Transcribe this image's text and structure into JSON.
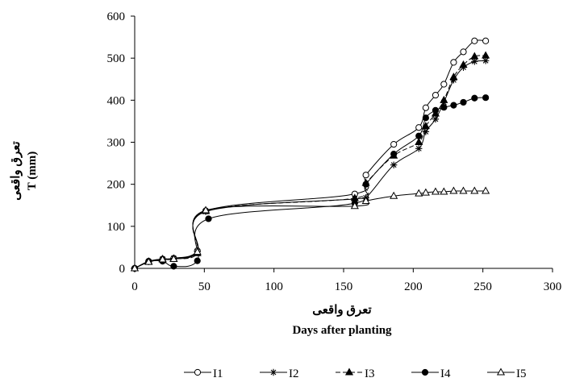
{
  "chart_data": {
    "type": "line",
    "xlabel": "Days after planting",
    "xlabel_alt": "تعرق واقعی",
    "ylabel": "T (mm)",
    "ylabel_alt": "تعرق واقعی",
    "xlim": [
      0,
      300
    ],
    "ylim": [
      0,
      600
    ],
    "xticks": [
      0,
      50,
      100,
      150,
      200,
      250,
      300
    ],
    "yticks": [
      0,
      100,
      200,
      300,
      400,
      500,
      600
    ],
    "grid": false,
    "legend": "bottom",
    "series": [
      {
        "name": "I1",
        "marker": "open-circle",
        "line": "solid",
        "x": [
          0,
          10,
          20,
          28,
          45,
          51,
          158,
          166,
          186,
          204,
          209,
          216,
          222,
          229,
          236,
          244,
          252
        ],
        "y": [
          0,
          17,
          22,
          24,
          42,
          137,
          177,
          222,
          295,
          335,
          382,
          412,
          438,
          490,
          515,
          541,
          541
        ]
      },
      {
        "name": "I2",
        "marker": "star",
        "line": "solid",
        "x": [
          0,
          10,
          20,
          28,
          45,
          51,
          158,
          166,
          186,
          204,
          209,
          216,
          222,
          229,
          236,
          244,
          252
        ],
        "y": [
          0,
          16,
          22,
          24,
          40,
          135,
          165,
          168,
          246,
          285,
          325,
          355,
          395,
          448,
          478,
          492,
          494
        ]
      },
      {
        "name": "I3",
        "marker": "filled-triangle",
        "line": "dashed",
        "x": [
          0,
          10,
          20,
          28,
          45,
          51,
          158,
          166,
          186,
          204,
          209,
          216,
          222,
          229,
          236,
          244,
          252
        ],
        "y": [
          0,
          16,
          22,
          23,
          36,
          136,
          167,
          203,
          268,
          300,
          338,
          368,
          400,
          455,
          484,
          504,
          506
        ]
      },
      {
        "name": "I4",
        "marker": "filled-circle",
        "line": "solid",
        "x": [
          0,
          10,
          20,
          28,
          45,
          53,
          158,
          166,
          186,
          204,
          209,
          216,
          222,
          229,
          236,
          244,
          252
        ],
        "y": [
          0,
          16,
          17,
          5,
          18,
          118,
          155,
          200,
          272,
          315,
          358,
          376,
          383,
          388,
          395,
          405,
          406
        ]
      },
      {
        "name": "I5",
        "marker": "open-triangle",
        "line": "solid",
        "x": [
          0,
          10,
          20,
          28,
          45,
          51,
          158,
          166,
          186,
          204,
          209,
          216,
          222,
          229,
          236,
          244,
          252
        ],
        "y": [
          0,
          15,
          21,
          22,
          39,
          138,
          148,
          160,
          172,
          178,
          180,
          182,
          182,
          184,
          184,
          184,
          184
        ]
      }
    ]
  }
}
